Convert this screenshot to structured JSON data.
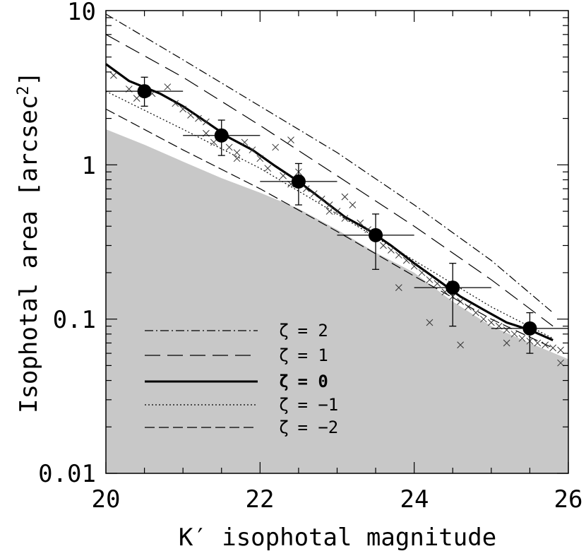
{
  "chart_data": {
    "type": "scatter",
    "title": "",
    "xlabel": "K′ isophotal magnitude",
    "ylabel": "Isophotal area [arcsec",
    "ylabel_exponent": "2",
    "ylabel_close": "]",
    "xlim": [
      20,
      26
    ],
    "ylim": [
      0.01,
      10
    ],
    "yscale": "log",
    "x_ticks": [
      "20",
      "22",
      "24",
      "26"
    ],
    "y_ticks": [
      "0.01",
      "0.1",
      "1",
      "10"
    ],
    "legend": [
      {
        "symbol": "ζ",
        "value": "= 2",
        "style": "dash-dot"
      },
      {
        "symbol": "ζ",
        "value": "= 1",
        "style": "long-dash"
      },
      {
        "symbol": "ζ",
        "value": "= 0",
        "style": "solid",
        "bold": true
      },
      {
        "symbol": "ζ",
        "value": "= −1",
        "style": "dotted"
      },
      {
        "symbol": "ζ",
        "value": "= −2",
        "style": "short-dash"
      }
    ],
    "binned_points": {
      "x": [
        20.5,
        21.5,
        22.5,
        23.5,
        24.5,
        25.5
      ],
      "y": [
        3.0,
        1.55,
        0.78,
        0.35,
        0.16,
        0.087
      ],
      "x_err": [
        0.5,
        0.5,
        0.5,
        0.5,
        0.5,
        0.5
      ],
      "y_low": [
        2.4,
        1.15,
        0.55,
        0.21,
        0.09,
        0.06
      ],
      "y_high": [
        3.7,
        1.95,
        1.02,
        0.48,
        0.23,
        0.11
      ]
    },
    "detection_limit": {
      "x": [
        20.0,
        20.5,
        21.0,
        21.5,
        22.0,
        22.5,
        23.0,
        23.5,
        24.0,
        24.5,
        25.0,
        25.5,
        26.0
      ],
      "y": [
        1.7,
        1.35,
        1.05,
        0.82,
        0.66,
        0.52,
        0.38,
        0.27,
        0.2,
        0.13,
        0.09,
        0.07,
        0.055
      ]
    },
    "series": [
      {
        "name": "ζ = 2",
        "x": [
          20,
          21,
          22,
          23,
          24,
          25,
          25.8
        ],
        "y": [
          9.5,
          4.8,
          2.4,
          1.2,
          0.55,
          0.24,
          0.11
        ]
      },
      {
        "name": "ζ = 1",
        "x": [
          20,
          21,
          22,
          23,
          24,
          25,
          25.8
        ],
        "y": [
          7.0,
          3.7,
          1.8,
          0.85,
          0.4,
          0.18,
          0.09
        ]
      },
      {
        "name": "ζ = 0",
        "x": [
          20.0,
          20.3,
          20.7,
          21.0,
          21.3,
          21.6,
          21.9,
          22.2,
          22.5,
          22.8,
          23.1,
          23.4,
          23.7,
          24.0,
          24.3,
          24.6,
          24.9,
          25.2,
          25.5,
          25.8
        ],
        "y": [
          4.5,
          3.5,
          2.9,
          2.4,
          1.9,
          1.5,
          1.25,
          0.98,
          0.78,
          0.6,
          0.46,
          0.38,
          0.3,
          0.23,
          0.18,
          0.14,
          0.115,
          0.095,
          0.085,
          0.073
        ]
      },
      {
        "name": "ζ = −1",
        "x": [
          20,
          21,
          22,
          23,
          24,
          25,
          25.8
        ],
        "y": [
          3.0,
          1.7,
          0.95,
          0.48,
          0.24,
          0.12,
          0.075
        ]
      },
      {
        "name": "ζ = −2",
        "x": [
          20,
          21,
          22,
          23,
          24,
          25,
          25.8
        ],
        "y": [
          2.3,
          1.25,
          0.7,
          0.37,
          0.19,
          0.1,
          0.065
        ]
      }
    ],
    "individual_points": {
      "x": [
        20.1,
        20.3,
        20.4,
        20.6,
        20.8,
        20.9,
        21.0,
        21.1,
        21.2,
        21.3,
        21.4,
        21.5,
        21.6,
        21.7,
        21.8,
        21.9,
        22.0,
        22.1,
        22.2,
        22.3,
        22.4,
        22.5,
        22.6,
        22.7,
        22.8,
        22.9,
        23.0,
        23.1,
        23.2,
        23.3,
        23.4,
        23.5,
        23.6,
        23.7,
        23.8,
        23.9,
        24.0,
        24.1,
        24.2,
        24.3,
        24.4,
        24.5,
        24.6,
        24.7,
        24.8,
        24.9,
        25.0,
        25.1,
        25.2,
        25.3,
        25.4,
        25.5,
        25.6,
        25.7,
        25.8,
        25.9,
        21.3,
        21.7,
        22.4,
        23.1,
        24.2,
        24.6,
        25.2,
        25.9,
        23.8,
        22.9
      ],
      "y": [
        3.8,
        3.1,
        2.7,
        2.9,
        3.2,
        2.5,
        2.3,
        2.1,
        2.0,
        1.6,
        1.4,
        1.5,
        1.3,
        1.2,
        1.4,
        1.25,
        1.1,
        0.95,
        1.3,
        0.85,
        0.75,
        0.9,
        0.7,
        0.65,
        0.6,
        0.55,
        0.5,
        0.45,
        0.55,
        0.42,
        0.38,
        0.35,
        0.3,
        0.28,
        0.26,
        0.24,
        0.22,
        0.2,
        0.18,
        0.17,
        0.15,
        0.14,
        0.13,
        0.12,
        0.11,
        0.1,
        0.095,
        0.09,
        0.085,
        0.08,
        0.075,
        0.072,
        0.07,
        0.068,
        0.065,
        0.063,
        1.9,
        1.1,
        1.45,
        0.62,
        0.095,
        0.068,
        0.07,
        0.052,
        0.16,
        0.5
      ]
    }
  }
}
